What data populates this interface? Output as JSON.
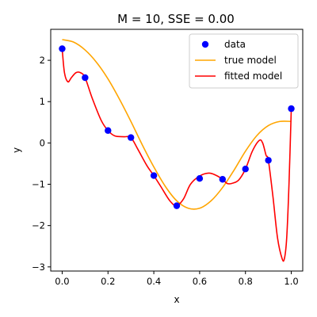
{
  "chart_data": {
    "type": "line",
    "title": "M = 10, SSE = 0.00",
    "xlabel": "x",
    "ylabel": "y",
    "xlim": [
      -0.05,
      1.05
    ],
    "ylim": [
      -3.1,
      2.75
    ],
    "xticks": [
      0.0,
      0.2,
      0.4,
      0.6,
      0.8,
      1.0
    ],
    "xtick_labels": [
      "0.0",
      "0.2",
      "0.4",
      "0.6",
      "0.8",
      "1.0"
    ],
    "yticks": [
      2,
      1,
      0,
      -1,
      -2,
      -3
    ],
    "ytick_labels": [
      "2",
      "1",
      "0",
      "−1",
      "−2",
      "−3"
    ],
    "grid": false,
    "legend_position": "top-right",
    "legend": [
      {
        "label": "data",
        "kind": "marker",
        "color": "#0000ff"
      },
      {
        "label": "true model",
        "kind": "line",
        "color": "#ffa500"
      },
      {
        "label": "fitted model",
        "kind": "line",
        "color": "#ff0000"
      }
    ],
    "series": [
      {
        "name": "data",
        "kind": "scatter",
        "color": "#0000ff",
        "x": [
          0.0,
          0.1,
          0.2,
          0.3,
          0.4,
          0.5,
          0.6,
          0.7,
          0.8,
          0.9,
          1.0
        ],
        "y": [
          2.28,
          1.58,
          0.3,
          0.13,
          -0.79,
          -1.52,
          -0.86,
          -0.88,
          -0.63,
          -0.42,
          0.83
        ]
      },
      {
        "name": "true model",
        "kind": "line",
        "color": "#ffa500",
        "x": [
          0.0,
          0.05,
          0.1,
          0.15,
          0.2,
          0.25,
          0.3,
          0.35,
          0.4,
          0.45,
          0.5,
          0.55,
          0.6,
          0.65,
          0.7,
          0.75,
          0.8,
          0.85,
          0.9,
          0.95,
          1.0
        ],
        "y": [
          2.5,
          2.44,
          2.25,
          1.95,
          1.55,
          1.06,
          0.52,
          -0.05,
          -0.58,
          -1.05,
          -1.4,
          -1.58,
          -1.58,
          -1.4,
          -1.08,
          -0.66,
          -0.2,
          0.18,
          0.42,
          0.52,
          0.52
        ]
      },
      {
        "name": "fitted model",
        "kind": "line",
        "color": "#ff0000",
        "x": [
          0.0,
          0.01,
          0.025,
          0.04,
          0.06,
          0.08,
          0.1,
          0.13,
          0.17,
          0.2,
          0.23,
          0.27,
          0.3,
          0.33,
          0.37,
          0.4,
          0.43,
          0.47,
          0.5,
          0.53,
          0.56,
          0.6,
          0.64,
          0.67,
          0.7,
          0.72,
          0.74,
          0.77,
          0.8,
          0.83,
          0.86,
          0.875,
          0.89,
          0.9,
          0.92,
          0.94,
          0.96,
          0.97,
          0.98,
          0.99,
          1.0
        ],
        "y": [
          2.28,
          1.7,
          1.48,
          1.58,
          1.7,
          1.7,
          1.58,
          1.1,
          0.55,
          0.3,
          0.17,
          0.15,
          0.13,
          -0.15,
          -0.55,
          -0.79,
          -1.05,
          -1.4,
          -1.52,
          -1.35,
          -1.0,
          -0.8,
          -0.73,
          -0.78,
          -0.88,
          -0.98,
          -0.98,
          -0.9,
          -0.63,
          -0.2,
          0.06,
          0.0,
          -0.3,
          -0.42,
          -1.3,
          -2.3,
          -2.8,
          -2.8,
          -2.3,
          -1.0,
          0.83
        ]
      }
    ]
  }
}
